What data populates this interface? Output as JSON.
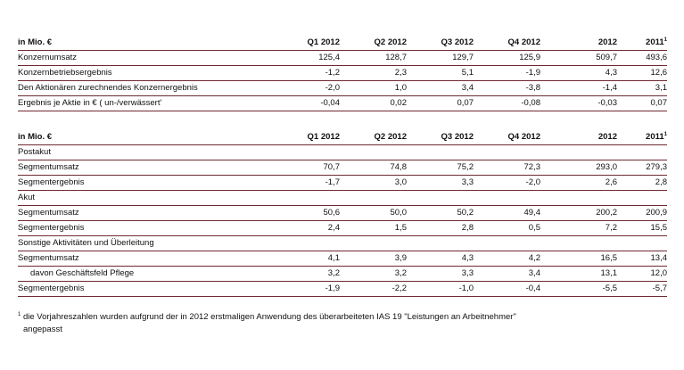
{
  "table1": {
    "header": {
      "label": "in Mio. €",
      "cols": [
        "Q1 2012",
        "Q2 2012",
        "Q3 2012",
        "Q4 2012",
        "2012",
        "2011"
      ],
      "sup": "1"
    },
    "rows": [
      {
        "label": "Konzernumsatz",
        "v": [
          "125,4",
          "128,7",
          "129,7",
          "125,9",
          "509,7",
          "493,6"
        ]
      },
      {
        "label": "Konzernbetriebsergebnis",
        "v": [
          "-1,2",
          "2,3",
          "5,1",
          "-1,9",
          "4,3",
          "12,6"
        ]
      },
      {
        "label": "Den Aktionären zurechnendes Konzernergebnis",
        "v": [
          "-2,0",
          "1,0",
          "3,4",
          "-3,8",
          "-1,4",
          "3,1"
        ]
      },
      {
        "label": "Ergebnis je Aktie in € ( un-/verwässert'",
        "v": [
          "-0,04",
          "0,02",
          "0,07",
          "-0,08",
          "-0,03",
          "0,07"
        ]
      }
    ]
  },
  "table2": {
    "header": {
      "label": "in Mio. €",
      "cols": [
        "Q1 2012",
        "Q2 2012",
        "Q3 2012",
        "Q4 2012",
        "2012",
        "2011"
      ],
      "sup": "1"
    },
    "sections": {
      "postakut": "Postakut",
      "akut": "Akut",
      "sonstige": "Sonstige Aktivitäten und Überleitung"
    },
    "postakut_umsatz": {
      "label": "Segmentumsatz",
      "v": [
        "70,7",
        "74,8",
        "75,2",
        "72,3",
        "293,0",
        "279,3"
      ]
    },
    "postakut_ergebnis": {
      "label": "Segmentergebnis",
      "v": [
        "-1,7",
        "3,0",
        "3,3",
        "-2,0",
        "2,6",
        "2,8"
      ]
    },
    "akut_umsatz": {
      "label": "Segmentumsatz",
      "v": [
        "50,6",
        "50,0",
        "50,2",
        "49,4",
        "200,2",
        "200,9"
      ]
    },
    "akut_ergebnis": {
      "label": "Segmentergebnis",
      "v": [
        "2,4",
        "1,5",
        "2,8",
        "0,5",
        "7,2",
        "15,5"
      ]
    },
    "sonst_umsatz": {
      "label": "Segmentumsatz",
      "v": [
        "4,1",
        "3,9",
        "4,3",
        "4,2",
        "16,5",
        "13,4"
      ]
    },
    "sonst_pflege": {
      "label": "davon Geschäftsfeld Pflege",
      "v": [
        "3,2",
        "3,2",
        "3,3",
        "3,4",
        "13,1",
        "12,0"
      ]
    },
    "sonst_ergebnis": {
      "label": "Segmentergebnis",
      "v": [
        "-1,9",
        "-2,2",
        "-1,0",
        "-0,4",
        "-5,5",
        "-5,7"
      ]
    }
  },
  "footnote": {
    "mark": "1",
    "line1": "die Vorjahreszahlen wurden aufgrund der in 2012 erstmaligen Anwendung des überarbeiteten IAS 19 \"Leistungen an Arbeitnehmer\"",
    "line2": "angepasst"
  },
  "colors": {
    "rule": "#6e2a33",
    "text": "#111111"
  }
}
